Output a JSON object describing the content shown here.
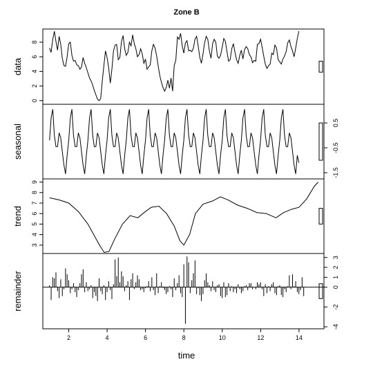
{
  "chart_data": {
    "type": "line",
    "title": "Zone B",
    "xlabel": "time",
    "xlim": [
      0.65,
      15.3
    ],
    "xticks": [
      2,
      4,
      6,
      8,
      10,
      12,
      14
    ],
    "x_start": 1.0,
    "x_step": 0.0833,
    "panels": [
      {
        "name": "data",
        "ylabel": "data",
        "style": "line",
        "ylim": [
          -0.5,
          9.8
        ],
        "yticks": [
          0,
          2,
          4,
          6,
          8
        ],
        "tick_side": "left",
        "values": [
          7.2,
          6.6,
          8.4,
          9.5,
          8.1,
          6.9,
          8.8,
          7.7,
          5.8,
          4.8,
          4.7,
          6.0,
          7.8,
          8.0,
          6.2,
          5.4,
          5.5,
          4.9,
          4.8,
          4.3,
          4.6,
          5.9,
          5.1,
          4.5,
          3.8,
          3.1,
          2.7,
          2.1,
          1.4,
          0.8,
          0.2,
          0.0,
          0.3,
          2.7,
          4.8,
          6.8,
          5.9,
          4.5,
          2.4,
          4.3,
          6.8,
          7.6,
          7.7,
          5.6,
          5.9,
          8.1,
          8.9,
          7.1,
          6.2,
          6.6,
          8.0,
          7.5,
          9.0,
          7.8,
          7.1,
          6.0,
          6.3,
          7.1,
          6.4,
          5.1,
          5.7,
          4.3,
          4.6,
          4.9,
          6.8,
          7.7,
          7.2,
          6.1,
          4.7,
          3.4,
          2.5,
          1.8,
          1.3,
          1.8,
          2.8,
          1.7,
          3.1,
          1.3,
          4.8,
          5.5,
          8.7,
          8.4,
          9.2,
          7.5,
          6.5,
          7.9,
          8.2,
          6.8,
          6.9,
          6.7,
          7.2,
          8.4,
          8.8,
          7.5,
          5.9,
          5.1,
          6.4,
          7.9,
          8.8,
          8.4,
          6.8,
          5.8,
          7.8,
          8.4,
          8.0,
          6.1,
          5.8,
          6.2,
          7.3,
          8.5,
          8.1,
          6.7,
          5.4,
          5.6,
          7.1,
          7.8,
          6.6,
          5.6,
          5.1,
          6.2,
          6.9,
          5.7,
          7.0,
          7.4,
          7.1,
          6.3,
          6.0,
          5.2,
          5.5,
          5.4,
          7.7,
          7.8,
          8.4,
          7.3,
          6.1,
          5.0,
          4.4,
          4.8,
          5.0,
          6.5,
          6.3,
          7.6,
          7.2,
          5.6,
          5.3,
          5.0,
          5.7,
          6.1,
          6.7,
          7.9,
          8.3,
          7.4,
          6.8,
          6.0,
          7.2,
          8.5,
          9.5
        ]
      },
      {
        "name": "seasonal",
        "ylabel": "seasonal",
        "style": "line",
        "ylim": [
          -1.75,
          1.25
        ],
        "yticks": [
          -1.5,
          -0.5,
          0.5
        ],
        "tick_side": "right",
        "pattern": [
          -0.2,
          0.7,
          1.05,
          0.0,
          -0.45,
          -0.45,
          0.1,
          -0.1,
          -0.65,
          -1.2,
          -1.55,
          -0.8
        ],
        "last": -1.1
      },
      {
        "name": "trend",
        "ylabel": "trend",
        "style": "line",
        "ylim": [
          2.2,
          9.3
        ],
        "yticks": [
          2,
          3,
          4,
          5,
          6,
          7,
          8,
          9
        ],
        "tick_side": "left",
        "x": [
          1.0,
          1.5,
          2.0,
          2.5,
          3.0,
          3.3,
          3.6,
          3.85,
          4.1,
          4.4,
          4.8,
          5.2,
          5.6,
          6.0,
          6.3,
          6.7,
          7.1,
          7.5,
          7.8,
          8.0,
          8.3,
          8.6,
          9.0,
          9.5,
          9.9,
          10.3,
          10.8,
          11.3,
          11.8,
          12.3,
          12.8,
          13.2,
          13.6,
          14.0,
          14.4,
          14.8,
          15.0
        ],
        "values": [
          7.5,
          7.3,
          7.0,
          6.2,
          5.0,
          4.0,
          3.0,
          2.3,
          2.4,
          3.6,
          5.0,
          5.8,
          5.6,
          6.2,
          6.6,
          6.7,
          6.0,
          4.8,
          3.4,
          3.0,
          4.0,
          6.0,
          6.9,
          7.2,
          7.6,
          7.3,
          6.8,
          6.5,
          6.1,
          6.0,
          5.6,
          6.1,
          6.4,
          6.6,
          7.4,
          8.6,
          9.0
        ]
      },
      {
        "name": "remainder",
        "ylabel": "remainder",
        "style": "spikes",
        "ylim": [
          -4.2,
          3.4
        ],
        "yticks": [
          -4,
          -2,
          0,
          1,
          2,
          3
        ],
        "tick_side": "right",
        "values": [
          0.2,
          -1.3,
          1.0,
          0.9,
          1.5,
          -0.4,
          -1.1,
          0.8,
          -0.9,
          -0.2,
          1.9,
          1.3,
          0.7,
          -0.6,
          -0.2,
          0.4,
          -0.5,
          -1.0,
          -0.3,
          0.4,
          1.3,
          1.8,
          -0.5,
          0.5,
          -0.4,
          -0.2,
          0.2,
          -1.1,
          -0.5,
          -0.9,
          -1.4,
          0.9,
          -0.4,
          -0.7,
          0.2,
          -1.3,
          -0.5,
          0.6,
          -0.3,
          -1.2,
          0.3,
          2.8,
          1.1,
          3.0,
          0.5,
          1.6,
          1.1,
          -0.4,
          0.2,
          0.6,
          -1.3,
          0.8,
          1.4,
          -0.2,
          0.5,
          1.2,
          0.8,
          -0.3,
          -0.2,
          -0.5,
          -0.1,
          0.1,
          0.6,
          -0.4,
          1.0,
          -0.3,
          -0.8,
          1.4,
          -0.6,
          0.1,
          0.5,
          -0.1,
          -0.3,
          -0.7,
          -0.5,
          0.1,
          -0.2,
          -1.0,
          0.9,
          -0.3,
          0.4,
          1.2,
          -0.6,
          -1.0,
          2.3,
          -3.7,
          3.1,
          2.5,
          -0.6,
          0.7,
          1.4,
          2.7,
          -0.7,
          -0.1,
          -0.8,
          -1.4,
          -0.7,
          0.7,
          1.4,
          0.5,
          0.2,
          -0.4,
          0.6,
          -0.3,
          -0.5,
          0.2,
          0.3,
          -0.9,
          -1.1,
          0.5,
          -1.0,
          -0.8,
          0.4,
          -0.4,
          0.1,
          -0.5,
          -0.2,
          -0.6,
          0.3,
          -0.2,
          -0.6,
          -0.4,
          0.1,
          0.2,
          -0.3,
          0.4,
          0.4,
          -0.2,
          0.0,
          -0.2,
          0.5,
          0.3,
          0.5,
          -0.2,
          -0.9,
          0.3,
          -0.6,
          0.1,
          -0.4,
          0.3,
          0.5,
          -0.6,
          -0.8,
          0.1,
          0.2,
          -0.8,
          -1.0,
          -0.2,
          -0.5,
          0.1,
          1.2,
          -0.2,
          1.3,
          0.1,
          0.6,
          -0.5,
          -0.7,
          -0.3,
          1.0,
          -0.9
        ]
      }
    ]
  }
}
